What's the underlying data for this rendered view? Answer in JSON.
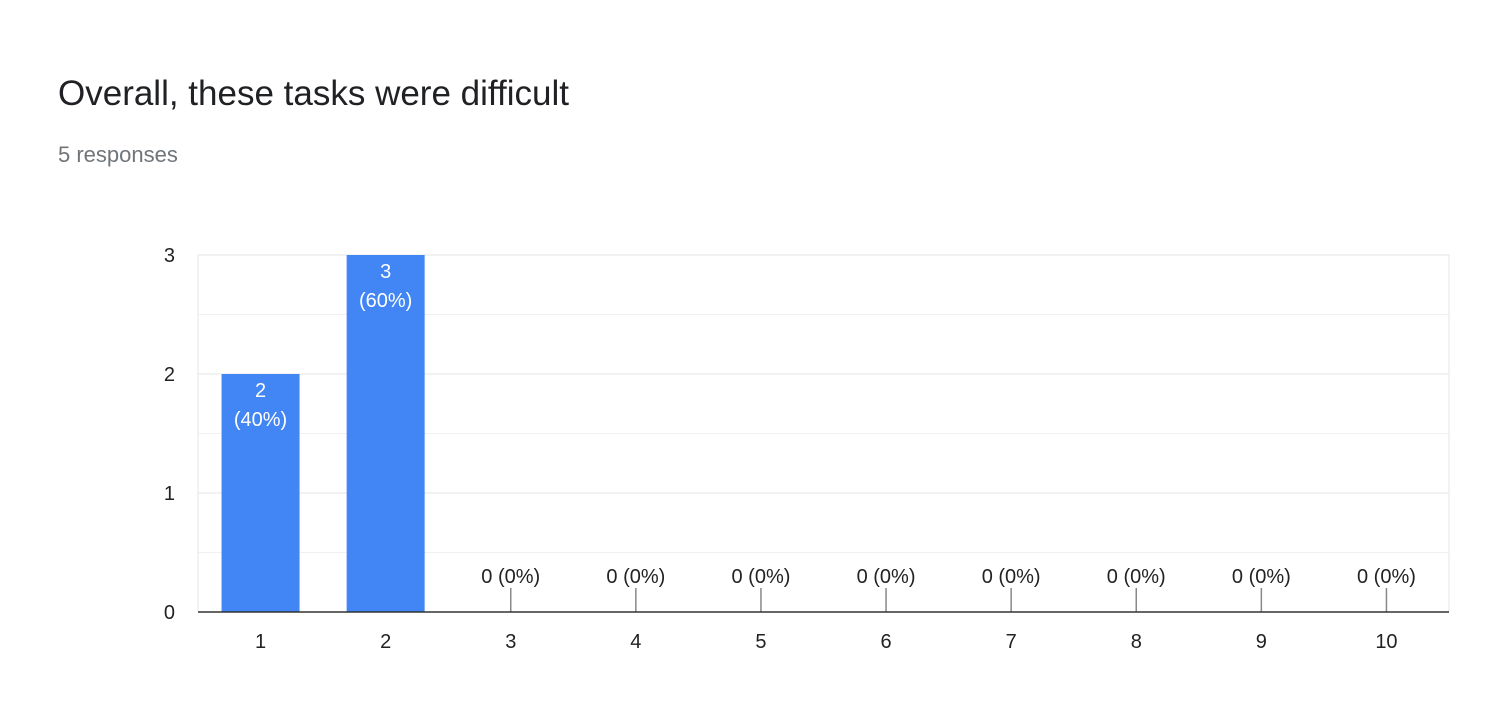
{
  "question": {
    "title": "Overall, these tasks were difficult",
    "responses": "5 responses"
  },
  "colors": {
    "bar": "#4285f4",
    "grid_major": "#e5e5e5",
    "grid_minor": "#f1f1f1",
    "axis": "#333333",
    "tick_label": "#222222",
    "bar_label_inside": "#ffffff"
  },
  "chart_data": {
    "type": "bar",
    "categories": [
      "1",
      "2",
      "3",
      "4",
      "5",
      "6",
      "7",
      "8",
      "9",
      "10"
    ],
    "values": [
      2,
      3,
      0,
      0,
      0,
      0,
      0,
      0,
      0,
      0
    ],
    "percents": [
      "40%",
      "60%",
      "0%",
      "0%",
      "0%",
      "0%",
      "0%",
      "0%",
      "0%",
      "0%"
    ],
    "ylim": [
      0,
      3
    ],
    "yticks": [
      "0",
      "1",
      "2",
      "3"
    ],
    "grid": true,
    "legend": "none"
  }
}
